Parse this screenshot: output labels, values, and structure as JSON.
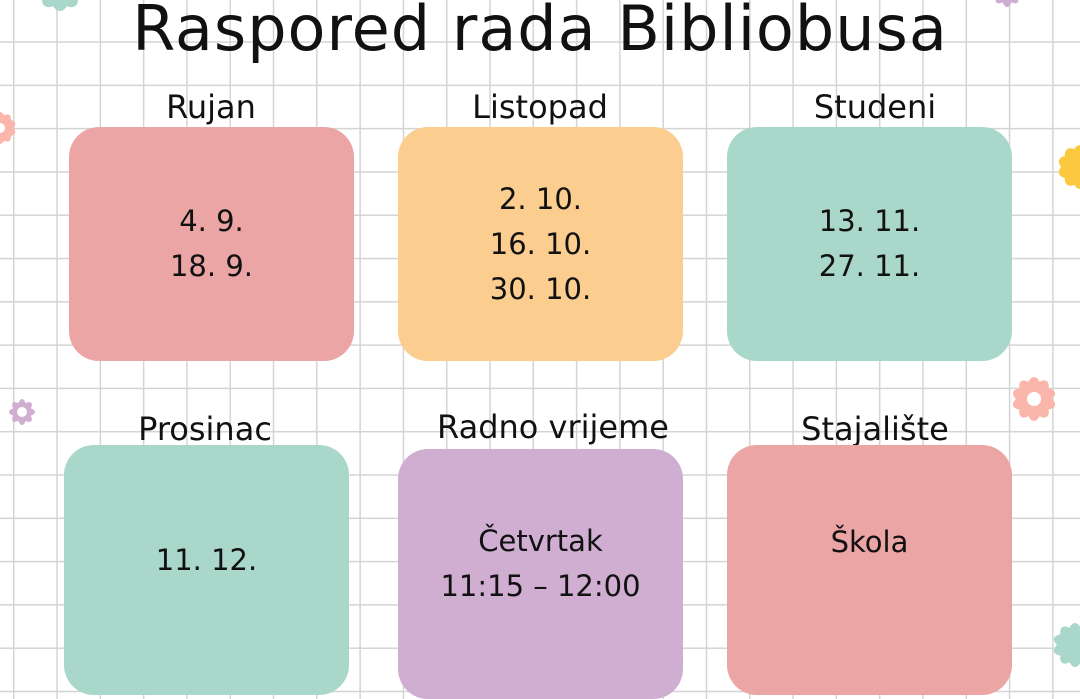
{
  "title": "Raspored rada Bibliobusa",
  "colors": {
    "pink": "#eba5a5",
    "orange": "#fbcd8f",
    "green": "#a9d8ca",
    "purple": "#d0aed2",
    "grid": "#d4d4d4"
  },
  "sections": [
    {
      "label": "Rujan",
      "lines": [
        "4. 9.",
        "18. 9."
      ]
    },
    {
      "label": "Listopad",
      "lines": [
        "2. 10.",
        "16. 10.",
        "30. 10."
      ]
    },
    {
      "label": "Studeni",
      "lines": [
        "13. 11.",
        "27. 11."
      ]
    },
    {
      "label": "Prosinac",
      "lines": [
        "11. 12."
      ]
    },
    {
      "label": "Radno vrijeme",
      "lines": [
        "Četvrtak",
        "11:15 – 12:00"
      ]
    },
    {
      "label": "Stajalište",
      "lines": [
        "Škola"
      ]
    }
  ]
}
